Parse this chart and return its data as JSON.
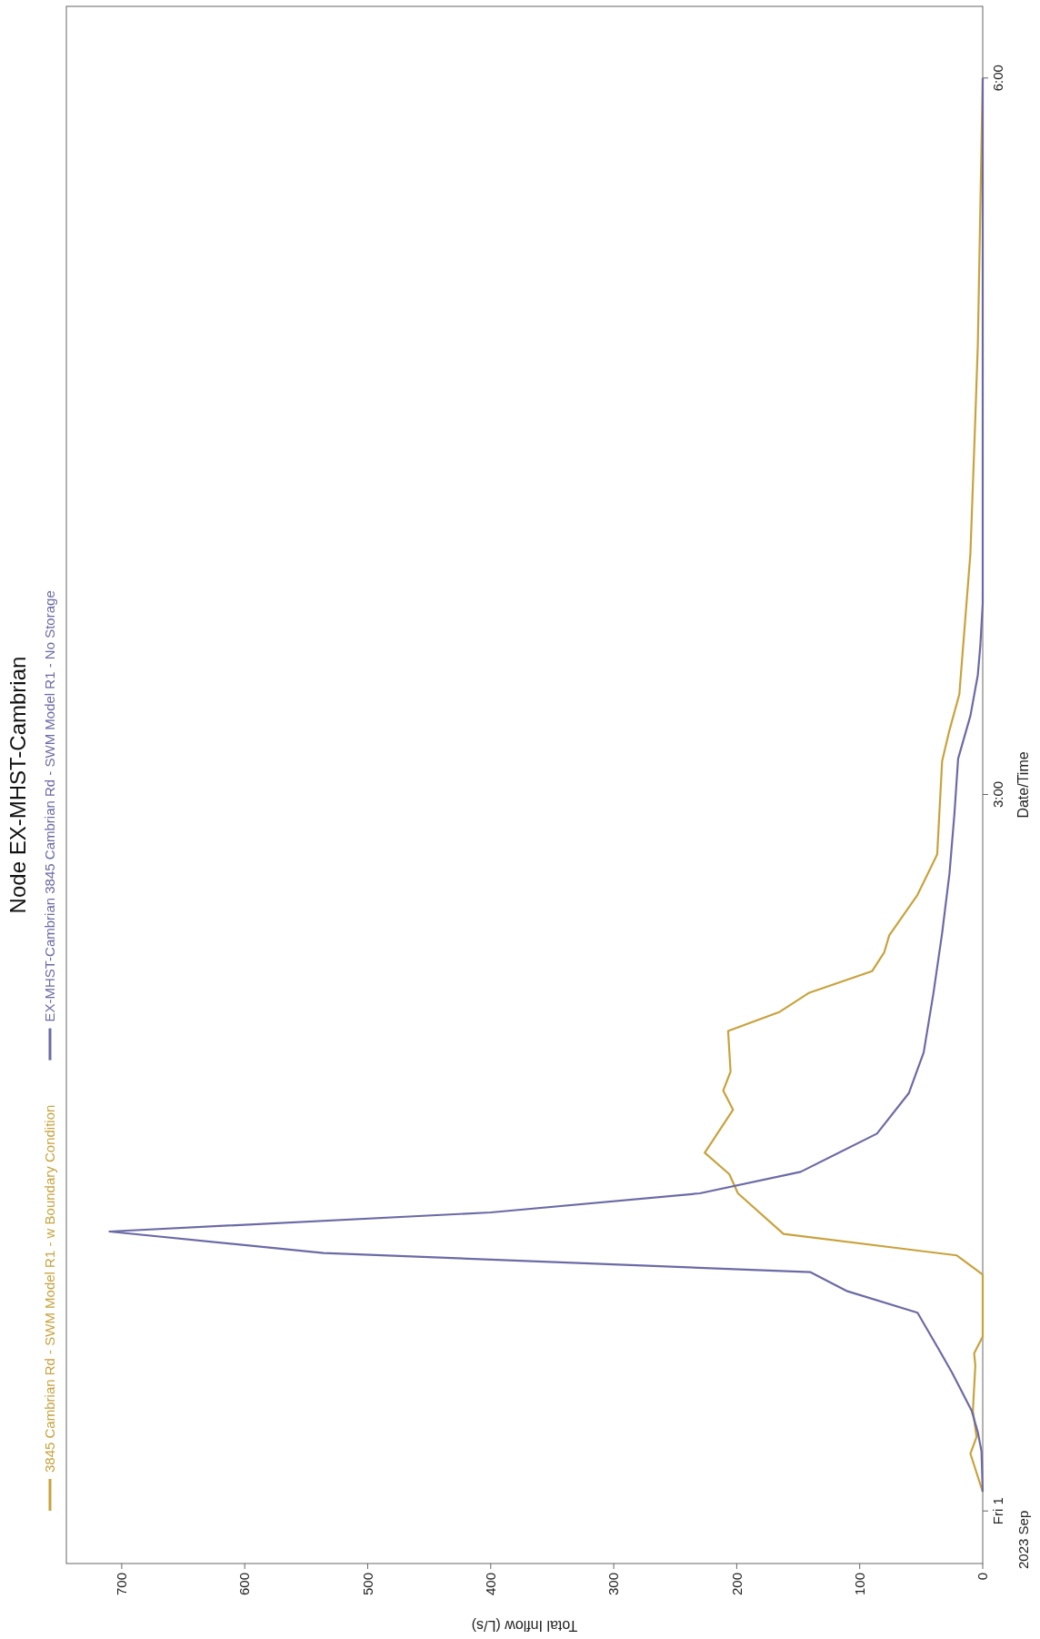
{
  "chart_data": {
    "type": "line",
    "title": "Node EX-MHST-Cambrian",
    "xlabel": "Total Inflow (L/s)",
    "ylabel": "Date/Time",
    "annotations": [
      "2023 Sep"
    ],
    "xlim": [
      745,
      0
    ],
    "xticks": [
      0,
      100,
      200,
      300,
      400,
      500,
      600,
      700
    ],
    "ylim": [
      -0.22,
      6.3
    ],
    "yticks": [
      {
        "value": 0,
        "label": "Fri 1"
      },
      {
        "value": 3,
        "label": "3:00"
      },
      {
        "value": 6,
        "label": "6:00"
      }
    ],
    "grid": false,
    "legend": "left",
    "marker": "none",
    "line_style": "solid",
    "series": [
      {
        "name": "3845 Cambrian Rd - SWM Model R1 - w Boundary Condition",
        "color": "#c9a23c",
        "x": [
          0,
          10,
          5,
          8,
          6,
          7,
          0,
          0,
          21,
          162,
          199,
          206,
          226,
          203,
          211,
          205,
          207,
          165,
          141,
          90,
          80,
          76,
          53,
          37,
          33,
          27,
          19,
          10,
          6,
          4,
          0
        ],
        "values": [
          0.08,
          0.24,
          0.31,
          0.42,
          0.61,
          0.66,
          0.73,
          0.99,
          1.07,
          1.16,
          1.33,
          1.41,
          1.5,
          1.68,
          1.76,
          1.84,
          2.01,
          2.09,
          2.17,
          2.26,
          2.34,
          2.41,
          2.58,
          2.75,
          3.14,
          3.27,
          3.42,
          4.01,
          4.58,
          4.88,
          6.0
        ]
      },
      {
        "name": "EX-MHST-Cambrian 3845 Cambrian Rd - SWM Model R1 - No Storage",
        "color": "#6b6aa6",
        "x": [
          0,
          1,
          4,
          9,
          25,
          35,
          53,
          110,
          140,
          536,
          710,
          400,
          230,
          148,
          86,
          60,
          48,
          40,
          33,
          27,
          23,
          20,
          10,
          4,
          2,
          0,
          0
        ],
        "values": [
          0.08,
          0.25,
          0.33,
          0.42,
          0.58,
          0.67,
          0.83,
          0.92,
          1.0,
          1.08,
          1.17,
          1.25,
          1.33,
          1.42,
          1.58,
          1.75,
          1.92,
          2.17,
          2.42,
          2.67,
          2.92,
          3.15,
          3.33,
          3.5,
          3.62,
          3.8,
          6.0
        ]
      }
    ]
  }
}
